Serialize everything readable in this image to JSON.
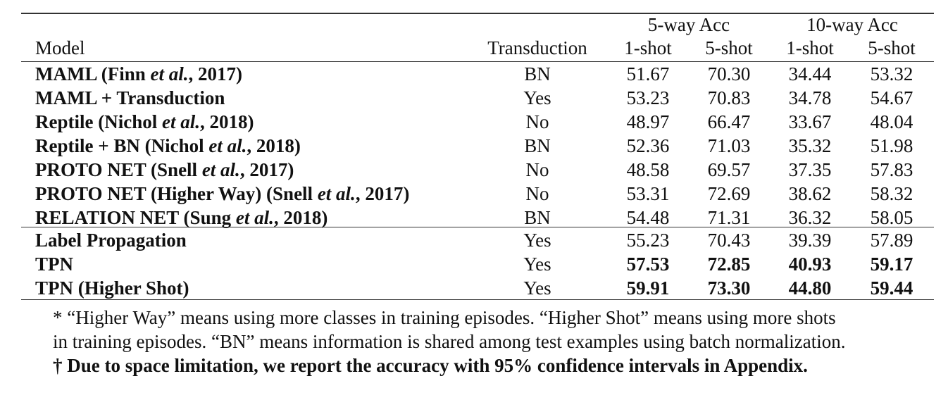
{
  "table": {
    "group_headers": [
      "5-way Acc",
      "10-way Acc"
    ],
    "columns": [
      "Model",
      "Transduction",
      "1-shot",
      "5-shot",
      "1-shot",
      "5-shot"
    ],
    "sections": [
      [
        {
          "model_pre": "MAML (Finn ",
          "model_em": "et al.",
          "model_post": ", 2017)",
          "transduction": "BN",
          "values": [
            "51.67",
            "70.30",
            "34.44",
            "53.32"
          ],
          "bold": [
            false,
            false,
            false,
            false
          ]
        },
        {
          "model_pre": "MAML + Transduction",
          "model_em": "",
          "model_post": "",
          "transduction": "Yes",
          "values": [
            "53.23",
            "70.83",
            "34.78",
            "54.67"
          ],
          "bold": [
            false,
            false,
            false,
            false
          ]
        },
        {
          "model_pre": "Reptile (Nichol ",
          "model_em": "et al.",
          "model_post": ", 2018)",
          "transduction": "No",
          "values": [
            "48.97",
            "66.47",
            "33.67",
            "48.04"
          ],
          "bold": [
            false,
            false,
            false,
            false
          ]
        },
        {
          "model_pre": "Reptile + BN (Nichol ",
          "model_em": "et al.",
          "model_post": ", 2018)",
          "transduction": "BN",
          "values": [
            "52.36",
            "71.03",
            "35.32",
            "51.98"
          ],
          "bold": [
            false,
            false,
            false,
            false
          ]
        },
        {
          "model_pre": "PROTO NET (Snell ",
          "model_em": "et al.",
          "model_post": ", 2017)",
          "transduction": "No",
          "values": [
            "48.58",
            "69.57",
            "37.35",
            "57.83"
          ],
          "bold": [
            false,
            false,
            false,
            false
          ]
        },
        {
          "model_pre": "PROTO NET (Higher Way) (Snell ",
          "model_em": "et al.",
          "model_post": ", 2017)",
          "transduction": "No",
          "values": [
            "53.31",
            "72.69",
            "38.62",
            "58.32"
          ],
          "bold": [
            false,
            false,
            false,
            false
          ]
        },
        {
          "model_pre": "RELATION NET (Sung ",
          "model_em": "et al.",
          "model_post": ", 2018)",
          "transduction": "BN",
          "values": [
            "54.48",
            "71.31",
            "36.32",
            "58.05"
          ],
          "bold": [
            false,
            false,
            false,
            false
          ]
        }
      ],
      [
        {
          "model_pre": "Label Propagation",
          "model_em": "",
          "model_post": "",
          "transduction": "Yes",
          "values": [
            "55.23",
            "70.43",
            "39.39",
            "57.89"
          ],
          "bold": [
            false,
            false,
            false,
            false
          ]
        },
        {
          "model_pre": "TPN",
          "model_em": "",
          "model_post": "",
          "transduction": "Yes",
          "values": [
            "57.53",
            "72.85",
            "40.93",
            "59.17"
          ],
          "bold": [
            true,
            true,
            true,
            true
          ]
        },
        {
          "model_pre": "TPN (Higher Shot)",
          "model_em": "",
          "model_post": "",
          "transduction": "Yes",
          "values": [
            "59.91",
            "73.30",
            "44.80",
            "59.44"
          ],
          "bold": [
            true,
            true,
            true,
            true
          ]
        }
      ]
    ]
  },
  "notes": [
    "* “Higher Way” means using more classes in training episodes. “Higher Shot” means using more shots",
    "in training episodes. “BN” means information is shared among test examples using batch normalization.",
    "† Due to space limitation, we report the accuracy with 95% confidence intervals in Appendix."
  ]
}
